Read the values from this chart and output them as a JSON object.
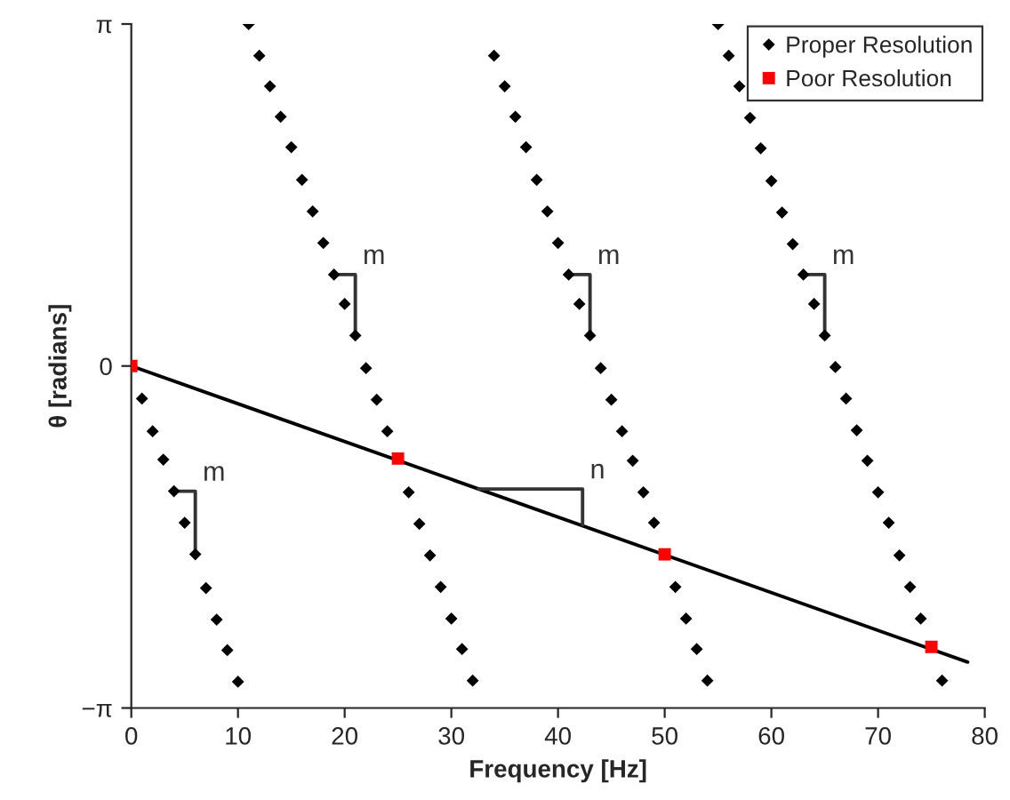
{
  "chart_data": {
    "type": "scatter",
    "xlabel": "Frequency [Hz]",
    "ylabel": "θ [radians]",
    "xlim": [
      0,
      80
    ],
    "xticks": [
      0,
      10,
      20,
      30,
      40,
      50,
      60,
      70,
      80
    ],
    "ylim": [
      -3.14159,
      3.14159
    ],
    "yticks": [
      {
        "value": -3.14159,
        "label": "−π"
      },
      0,
      {
        "value": 3.14159,
        "label": "π"
      }
    ],
    "grid": false,
    "legend": "top right",
    "series": [
      {
        "name": "Proper Resolution",
        "marker": "diamond",
        "color": "#000000",
        "x": [
          1,
          2,
          3,
          4,
          5,
          6,
          7,
          8,
          9,
          10,
          11,
          12,
          13,
          14,
          15,
          16,
          17,
          18,
          19,
          20,
          21,
          22,
          23,
          24,
          26,
          27,
          28,
          29,
          30,
          31,
          32,
          34,
          35,
          36,
          37,
          38,
          39,
          40,
          41,
          42,
          43,
          44,
          45,
          46,
          47,
          48,
          49,
          51,
          52,
          53,
          54,
          55,
          56,
          57,
          58,
          59,
          60,
          61,
          62,
          63,
          64,
          65,
          66,
          67,
          68,
          69,
          70,
          71,
          72,
          73,
          74,
          76
        ],
        "values": [
          -0.3,
          -0.6,
          -0.86,
          -1.15,
          -1.44,
          -1.73,
          -2.04,
          -2.33,
          -2.61,
          -2.9,
          3.14,
          2.85,
          2.57,
          2.29,
          2.01,
          1.71,
          1.42,
          1.13,
          0.84,
          0.57,
          0.28,
          -0.02,
          -0.31,
          -0.6,
          -1.16,
          -1.45,
          -1.74,
          -2.03,
          -2.32,
          -2.6,
          -2.89,
          2.85,
          2.57,
          2.29,
          2.01,
          1.71,
          1.42,
          1.13,
          0.84,
          0.57,
          0.28,
          -0.02,
          -0.31,
          -0.6,
          -0.87,
          -1.16,
          -1.44,
          -2.03,
          -2.32,
          -2.6,
          -2.89,
          3.14,
          2.85,
          2.57,
          2.28,
          2.0,
          1.7,
          1.41,
          1.12,
          0.84,
          0.57,
          0.28,
          -0.01,
          -0.3,
          -0.59,
          -0.87,
          -1.16,
          -1.44,
          -1.74,
          -2.03,
          -2.32,
          -2.89
        ]
      },
      {
        "name": "Poor Resolution",
        "marker": "square",
        "color": "#ff0000",
        "x": [
          0,
          25,
          50,
          75
        ],
        "values": [
          0,
          -0.85,
          -1.73,
          -2.58
        ]
      },
      {
        "type": "line",
        "color": "#000000",
        "x": [
          0,
          78.4
        ],
        "values": [
          0,
          -2.72
        ]
      },
      {
        "name": "m",
        "type": "line",
        "color": "#333333",
        "x": [
          4,
          6,
          6
        ],
        "values": [
          -1.15,
          -1.15,
          -1.73
        ]
      },
      {
        "name": "m",
        "type": "line",
        "color": "#333333",
        "x": [
          19,
          21,
          21
        ],
        "values": [
          0.84,
          0.84,
          0.28
        ]
      },
      {
        "name": "m",
        "type": "line",
        "color": "#333333",
        "x": [
          41,
          43,
          43
        ],
        "values": [
          0.84,
          0.84,
          0.28
        ]
      },
      {
        "name": "m",
        "type": "line",
        "color": "#333333",
        "x": [
          63,
          65,
          65
        ],
        "values": [
          0.84,
          0.84,
          0.28
        ]
      },
      {
        "name": "n",
        "type": "line",
        "color": "#333333",
        "x": [
          32.5,
          42.3,
          42.3
        ],
        "values": [
          -1.13,
          -1.13,
          -1.46
        ]
      }
    ]
  }
}
